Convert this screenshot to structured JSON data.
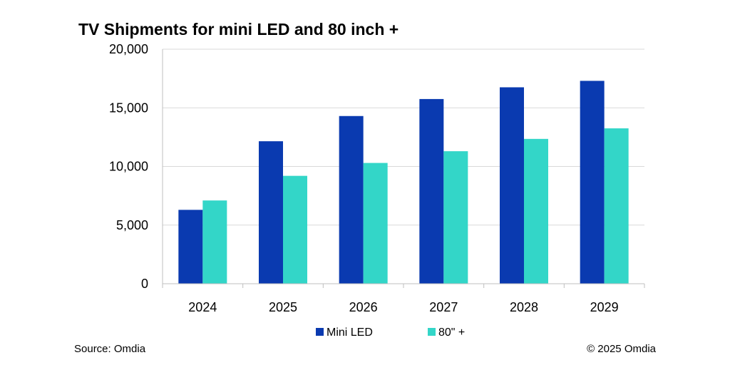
{
  "chart_data": {
    "type": "bar",
    "title": "TV Shipments for mini LED and 80 inch +",
    "categories": [
      "2024",
      "2025",
      "2026",
      "2027",
      "2028",
      "2029"
    ],
    "series": [
      {
        "name": "Mini LED",
        "color": "#0a3ab0",
        "values": [
          6300,
          12150,
          14300,
          15750,
          16750,
          17300
        ]
      },
      {
        "name": "80\" +",
        "color": "#33d6c8",
        "values": [
          7100,
          9200,
          10300,
          11300,
          12350,
          13250
        ]
      }
    ],
    "ylim": [
      0,
      20000
    ],
    "yticks": [
      0,
      5000,
      10000,
      15000,
      20000
    ],
    "ytick_labels": [
      "0",
      "5,000",
      "10,000",
      "15,000",
      "20,000"
    ],
    "xlabel": "",
    "ylabel": "",
    "grid": true,
    "legend_position": "bottom"
  },
  "footer": {
    "source": "Source: Omdia",
    "copyright": "© 2025 Omdia"
  }
}
